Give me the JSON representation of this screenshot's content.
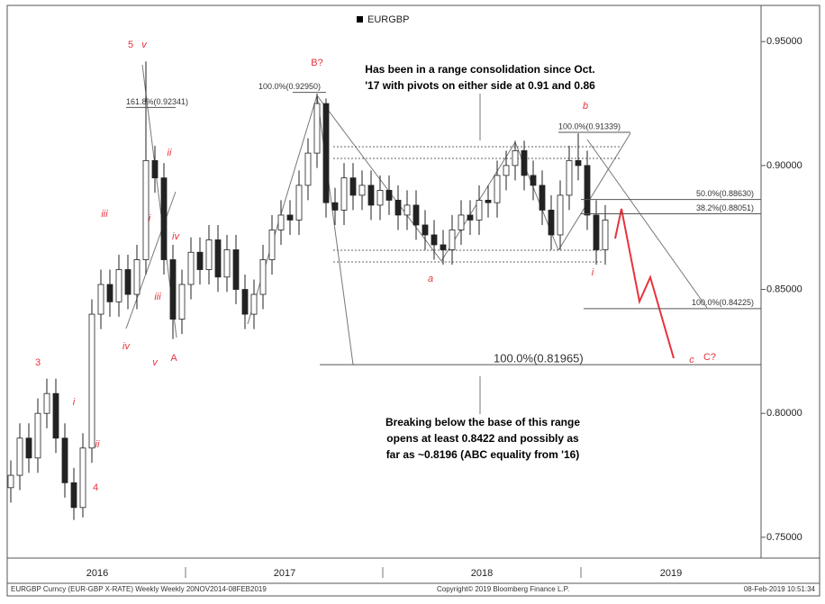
{
  "chart_data": {
    "type": "candlestick",
    "ylim": [
      0.7416,
      0.9646
    ],
    "yticks": [
      {
        "value": 0.75,
        "label": "0.75000"
      },
      {
        "value": 0.8,
        "label": "0.80000"
      },
      {
        "value": 0.85,
        "label": "0.85000"
      },
      {
        "value": 0.9,
        "label": "0.90000"
      },
      {
        "value": 0.95,
        "label": "0.95000"
      }
    ],
    "year_labels": [
      "2016",
      "2017",
      "2018",
      "2019"
    ],
    "series": [
      {
        "name": "EURGBP",
        "open": [
          0.77,
          0.775,
          0.79,
          0.782,
          0.8,
          0.808,
          0.79,
          0.772,
          0.762,
          0.786,
          0.84,
          0.852,
          0.845,
          0.858,
          0.848,
          0.862,
          0.902,
          0.895,
          0.862,
          0.838,
          0.852,
          0.865,
          0.858,
          0.87,
          0.855,
          0.866,
          0.85,
          0.84,
          0.848,
          0.862,
          0.874,
          0.88,
          0.878,
          0.892,
          0.905,
          0.925,
          0.885,
          0.882,
          0.895,
          0.888,
          0.892,
          0.884,
          0.89,
          0.886,
          0.88,
          0.884,
          0.876,
          0.872,
          0.868,
          0.866,
          0.874,
          0.88,
          0.878,
          0.886,
          0.885,
          0.896,
          0.9,
          0.906,
          0.896,
          0.892,
          0.882,
          0.872,
          0.888,
          0.902,
          0.9,
          0.88,
          0.866
        ],
        "high": [
          0.781,
          0.796,
          0.796,
          0.806,
          0.814,
          0.814,
          0.796,
          0.778,
          0.792,
          0.846,
          0.858,
          0.858,
          0.864,
          0.864,
          0.868,
          0.942,
          0.908,
          0.901,
          0.868,
          0.858,
          0.871,
          0.871,
          0.876,
          0.876,
          0.872,
          0.872,
          0.856,
          0.854,
          0.868,
          0.88,
          0.886,
          0.886,
          0.898,
          0.911,
          0.929,
          0.927,
          0.891,
          0.901,
          0.901,
          0.898,
          0.898,
          0.896,
          0.896,
          0.892,
          0.89,
          0.89,
          0.882,
          0.878,
          0.874,
          0.88,
          0.886,
          0.886,
          0.892,
          0.892,
          0.902,
          0.906,
          0.91,
          0.91,
          0.902,
          0.898,
          0.888,
          0.894,
          0.908,
          0.913,
          0.906,
          0.886,
          0.884
        ],
        "low": [
          0.764,
          0.769,
          0.776,
          0.776,
          0.794,
          0.784,
          0.766,
          0.757,
          0.758,
          0.78,
          0.834,
          0.839,
          0.839,
          0.842,
          0.842,
          0.856,
          0.889,
          0.856,
          0.83,
          0.832,
          0.846,
          0.852,
          0.852,
          0.849,
          0.849,
          0.844,
          0.834,
          0.834,
          0.842,
          0.856,
          0.868,
          0.872,
          0.872,
          0.886,
          0.899,
          0.879,
          0.876,
          0.876,
          0.882,
          0.882,
          0.878,
          0.878,
          0.88,
          0.874,
          0.874,
          0.87,
          0.866,
          0.862,
          0.86,
          0.86,
          0.868,
          0.872,
          0.872,
          0.879,
          0.879,
          0.89,
          0.894,
          0.89,
          0.886,
          0.876,
          0.866,
          0.866,
          0.882,
          0.894,
          0.874,
          0.86,
          0.86
        ],
        "close": [
          0.775,
          0.79,
          0.782,
          0.8,
          0.808,
          0.79,
          0.772,
          0.762,
          0.786,
          0.84,
          0.852,
          0.845,
          0.858,
          0.848,
          0.862,
          0.902,
          0.895,
          0.862,
          0.838,
          0.852,
          0.865,
          0.858,
          0.87,
          0.855,
          0.866,
          0.85,
          0.84,
          0.848,
          0.862,
          0.874,
          0.88,
          0.878,
          0.892,
          0.905,
          0.925,
          0.885,
          0.882,
          0.895,
          0.888,
          0.892,
          0.884,
          0.89,
          0.886,
          0.88,
          0.884,
          0.876,
          0.872,
          0.868,
          0.866,
          0.874,
          0.88,
          0.878,
          0.886,
          0.885,
          0.896,
          0.9,
          0.906,
          0.896,
          0.892,
          0.882,
          0.872,
          0.888,
          0.902,
          0.9,
          0.88,
          0.866,
          0.878
        ]
      }
    ],
    "levels": [
      {
        "label": "161.8%(0.92341)",
        "value": 0.92341
      },
      {
        "label": "100.0%(0.92950)",
        "value": 0.9295
      },
      {
        "label": "100.0%(0.91339)",
        "value": 0.91339
      },
      {
        "label": "50.0%(0.88630)",
        "value": 0.8863
      },
      {
        "label": "38.2%(0.88051)",
        "value": 0.88051
      },
      {
        "label": "100.0%(0.84225)",
        "value": 0.84225
      },
      {
        "label": "100.0%(0.81965)",
        "value": 0.81965
      }
    ],
    "annotations": [
      {
        "lines": [
          "Has been in a range consolidation since Oct.",
          "'17 with pivots on either side at 0.91 and 0.86"
        ]
      },
      {
        "lines": [
          "Breaking below the base of this range",
          "opens  at least 0.8422 and possibly as",
          "far  as ~0.8196 (ABC equality from '16)"
        ]
      }
    ],
    "wave_labels": [
      "5",
      "v",
      "B?",
      "b",
      "iii",
      "ii",
      "i",
      "iv",
      "iii",
      "iv",
      "v",
      "A",
      "3",
      "i",
      "ii",
      "4",
      "a",
      "i",
      "c",
      "C?"
    ],
    "footer": {
      "left": "EURGBP Curncy (EUR-GBP X-RATE) Weekly  Weekly 20NOV2014-08FEB2019",
      "center": "Copyright© 2019 Bloomberg Finance L.P.",
      "right": "08-Feb-2019 10:51:34"
    }
  }
}
